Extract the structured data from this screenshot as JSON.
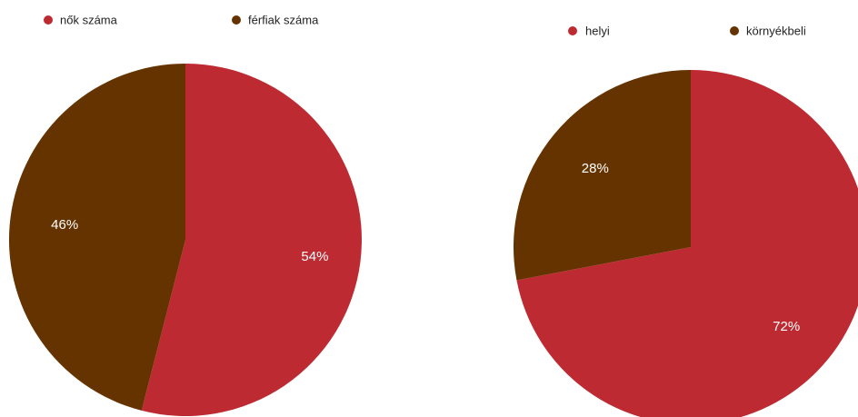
{
  "colors": {
    "red": "#be2a32",
    "brown": "#653300",
    "background": "#ffffff"
  },
  "chart_data": [
    {
      "type": "pie",
      "title": "",
      "legend_position": "top",
      "slices": [
        {
          "label": "nők száma",
          "value": 54,
          "display": "54%",
          "color": "#be2a32"
        },
        {
          "label": "férfiak száma",
          "value": 46,
          "display": "46%",
          "color": "#653300"
        }
      ]
    },
    {
      "type": "pie",
      "title": "",
      "legend_position": "top",
      "slices": [
        {
          "label": "helyi",
          "value": 72,
          "display": "72%",
          "color": "#be2a32"
        },
        {
          "label": "környékbeli",
          "value": 28,
          "display": "28%",
          "color": "#653300"
        }
      ]
    }
  ]
}
